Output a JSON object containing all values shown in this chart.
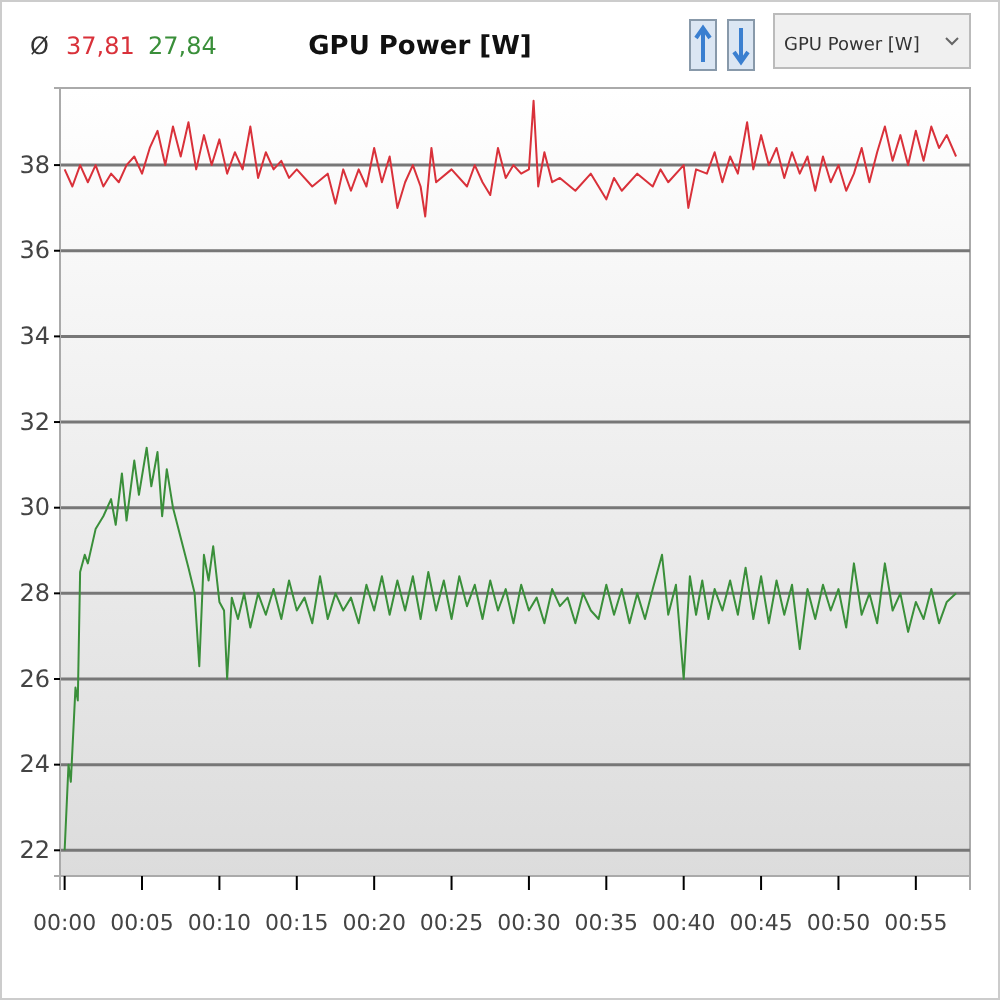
{
  "chart_data": {
    "type": "line",
    "title": "GPU Power [W]",
    "annotations": [
      "Ø",
      "37,81",
      "27,84",
      "GPU Power [W]"
    ],
    "xlim": [
      -0.3,
      58.5
    ],
    "ylim": [
      21.4,
      39.8
    ],
    "xticks": [
      {
        "value": 0,
        "label": "00:00"
      },
      {
        "value": 5,
        "label": "00:05"
      },
      {
        "value": 10,
        "label": "00:10"
      },
      {
        "value": 15,
        "label": "00:15"
      },
      {
        "value": 20,
        "label": "00:20"
      },
      {
        "value": 25,
        "label": "00:25"
      },
      {
        "value": 30,
        "label": "00:30"
      },
      {
        "value": 35,
        "label": "00:35"
      },
      {
        "value": 40,
        "label": "00:40"
      },
      {
        "value": 45,
        "label": "00:45"
      },
      {
        "value": 50,
        "label": "00:50"
      },
      {
        "value": 55,
        "label": "00:55"
      }
    ],
    "yticks": [
      22,
      24,
      26,
      28,
      30,
      32,
      34,
      36,
      38
    ],
    "grid": "y",
    "series": [
      {
        "color": "#d9313a",
        "x": [
          0,
          0.5,
          1,
          1.5,
          2,
          2.5,
          3,
          3.5,
          4,
          4.5,
          5,
          5.5,
          6,
          6.5,
          7,
          7.5,
          8,
          8.5,
          9,
          9.5,
          10,
          10.5,
          11,
          11.5,
          12,
          12.5,
          13,
          13.5,
          14,
          14.5,
          15,
          16,
          17,
          17.5,
          18,
          18.5,
          19,
          19.5,
          20,
          20.5,
          21,
          21.5,
          22,
          22.5,
          23,
          23.3,
          23.7,
          24,
          25,
          26,
          26.5,
          27,
          27.5,
          28,
          28.5,
          29,
          29.5,
          30,
          30.3,
          30.6,
          31,
          31.5,
          32,
          33,
          34,
          35,
          35.5,
          36,
          37,
          38,
          38.5,
          39,
          40,
          40.3,
          40.8,
          41.5,
          42,
          42.5,
          43,
          43.5,
          44.1,
          44.5,
          45,
          45.5,
          46,
          46.5,
          47,
          47.5,
          48,
          48.5,
          49,
          49.5,
          50,
          50.5,
          51,
          51.5,
          52,
          52.5,
          53,
          53.5,
          54,
          54.5,
          55,
          55.5,
          56,
          56.5,
          57,
          57.6
        ],
        "values": [
          37.9,
          37.5,
          38.0,
          37.6,
          38.0,
          37.5,
          37.8,
          37.6,
          38.0,
          38.2,
          37.8,
          38.4,
          38.8,
          38.0,
          38.9,
          38.2,
          39.0,
          37.9,
          38.7,
          38.0,
          38.6,
          37.8,
          38.3,
          37.9,
          38.9,
          37.7,
          38.3,
          37.9,
          38.1,
          37.7,
          37.9,
          37.5,
          37.8,
          37.1,
          37.9,
          37.4,
          37.9,
          37.5,
          38.4,
          37.6,
          38.2,
          37.0,
          37.6,
          38.0,
          37.5,
          36.8,
          38.4,
          37.6,
          37.9,
          37.5,
          38.0,
          37.6,
          37.3,
          38.4,
          37.7,
          38.0,
          37.8,
          37.9,
          39.5,
          37.5,
          38.3,
          37.6,
          37.7,
          37.4,
          37.8,
          37.2,
          37.7,
          37.4,
          37.8,
          37.5,
          37.9,
          37.6,
          38.0,
          37.0,
          37.9,
          37.8,
          38.3,
          37.6,
          38.2,
          37.8,
          39.0,
          37.9,
          38.7,
          38.0,
          38.4,
          37.7,
          38.3,
          37.8,
          38.2,
          37.4,
          38.2,
          37.6,
          38.0,
          37.4,
          37.8,
          38.4,
          37.6,
          38.3,
          38.9,
          38.1,
          38.7,
          38.0,
          38.8,
          38.1,
          38.9,
          38.4,
          38.7,
          38.2
        ]
      },
      {
        "color": "#3a8f3a",
        "x": [
          0,
          0.25,
          0.4,
          0.7,
          0.85,
          1.0,
          1.3,
          1.5,
          2,
          2.5,
          3,
          3.3,
          3.7,
          4,
          4.5,
          4.8,
          5.3,
          5.6,
          6,
          6.3,
          6.6,
          7,
          7.5,
          8,
          8.4,
          8.7,
          9.0,
          9.3,
          9.6,
          10,
          10.3,
          10.5,
          10.8,
          11.2,
          11.6,
          12,
          12.5,
          13,
          13.5,
          14,
          14.5,
          15,
          15.5,
          16,
          16.5,
          17,
          17.5,
          18,
          18.5,
          19,
          19.5,
          20,
          20.5,
          21,
          21.5,
          22,
          22.5,
          23,
          23.5,
          24,
          24.5,
          25,
          25.5,
          26,
          26.5,
          27,
          27.5,
          28,
          28.5,
          29,
          29.5,
          30,
          30.5,
          31,
          31.5,
          32,
          32.5,
          33,
          33.5,
          34,
          34.5,
          35,
          35.5,
          36,
          36.5,
          37,
          37.5,
          38,
          38.6,
          39,
          39.5,
          40,
          40.4,
          40.8,
          41.2,
          41.6,
          42,
          42.5,
          43,
          43.5,
          44,
          44.5,
          45,
          45.5,
          46,
          46.5,
          47,
          47.5,
          48,
          48.5,
          49,
          49.5,
          50,
          50.5,
          51,
          51.5,
          52,
          52.5,
          53,
          53.5,
          54,
          54.5,
          55,
          55.5,
          56,
          56.5,
          57,
          57.6
        ],
        "values": [
          22,
          24,
          23.6,
          25.8,
          25.5,
          28.5,
          28.9,
          28.7,
          29.5,
          29.8,
          30.2,
          29.6,
          30.8,
          29.7,
          31.1,
          30.3,
          31.4,
          30.5,
          31.3,
          29.8,
          30.9,
          30.0,
          29.3,
          28.6,
          28.0,
          26.3,
          28.9,
          28.3,
          29.1,
          27.8,
          27.6,
          26.0,
          27.9,
          27.4,
          28.0,
          27.2,
          28.0,
          27.5,
          28.1,
          27.4,
          28.3,
          27.6,
          27.9,
          27.3,
          28.4,
          27.4,
          28.0,
          27.6,
          27.9,
          27.3,
          28.2,
          27.6,
          28.4,
          27.5,
          28.3,
          27.6,
          28.4,
          27.4,
          28.5,
          27.6,
          28.3,
          27.4,
          28.4,
          27.7,
          28.2,
          27.4,
          28.3,
          27.6,
          28.1,
          27.3,
          28.2,
          27.6,
          27.9,
          27.3,
          28.1,
          27.7,
          27.9,
          27.3,
          28.0,
          27.6,
          27.4,
          28.2,
          27.5,
          28.1,
          27.3,
          28.0,
          27.4,
          28.1,
          28.9,
          27.5,
          28.2,
          26.0,
          28.4,
          27.5,
          28.3,
          27.4,
          28.1,
          27.6,
          28.3,
          27.5,
          28.6,
          27.4,
          28.4,
          27.3,
          28.3,
          27.5,
          28.2,
          26.7,
          28.1,
          27.4,
          28.2,
          27.6,
          28.1,
          27.2,
          28.7,
          27.5,
          28.0,
          27.3,
          28.7,
          27.6,
          28.0,
          27.1,
          27.8,
          27.4,
          28.1,
          27.3,
          27.8,
          28.0
        ]
      }
    ]
  }
}
